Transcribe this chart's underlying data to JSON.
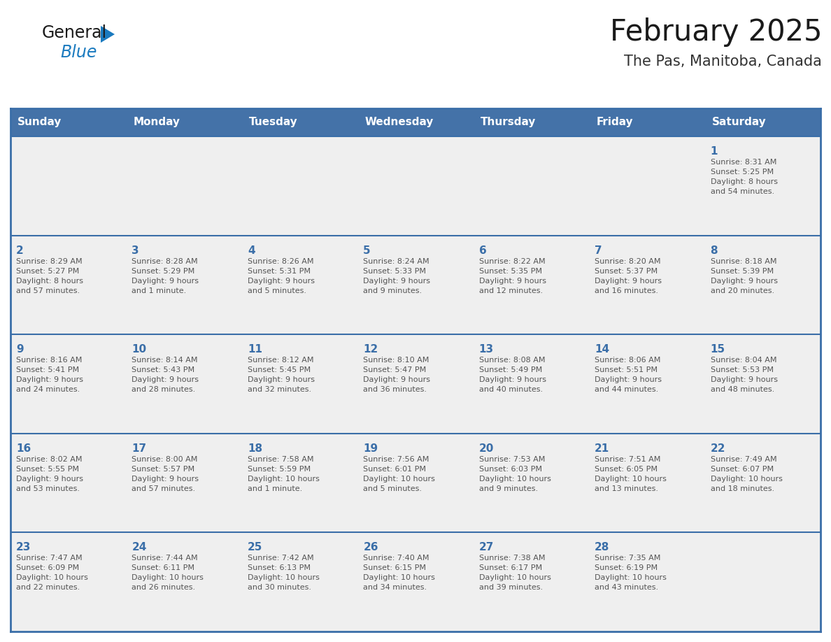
{
  "title": "February 2025",
  "subtitle": "The Pas, Manitoba, Canada",
  "header_bg": "#4472a8",
  "header_text_color": "#FFFFFF",
  "cell_bg": "#EFEFEF",
  "day_number_color": "#3a6ea8",
  "text_color": "#555555",
  "line_color": "#3a6ea8",
  "border_color": "#3a6ea8",
  "days_of_week": [
    "Sunday",
    "Monday",
    "Tuesday",
    "Wednesday",
    "Thursday",
    "Friday",
    "Saturday"
  ],
  "weeks": [
    [
      {
        "day": null,
        "info": null
      },
      {
        "day": null,
        "info": null
      },
      {
        "day": null,
        "info": null
      },
      {
        "day": null,
        "info": null
      },
      {
        "day": null,
        "info": null
      },
      {
        "day": null,
        "info": null
      },
      {
        "day": 1,
        "info": "Sunrise: 8:31 AM\nSunset: 5:25 PM\nDaylight: 8 hours\nand 54 minutes."
      }
    ],
    [
      {
        "day": 2,
        "info": "Sunrise: 8:29 AM\nSunset: 5:27 PM\nDaylight: 8 hours\nand 57 minutes."
      },
      {
        "day": 3,
        "info": "Sunrise: 8:28 AM\nSunset: 5:29 PM\nDaylight: 9 hours\nand 1 minute."
      },
      {
        "day": 4,
        "info": "Sunrise: 8:26 AM\nSunset: 5:31 PM\nDaylight: 9 hours\nand 5 minutes."
      },
      {
        "day": 5,
        "info": "Sunrise: 8:24 AM\nSunset: 5:33 PM\nDaylight: 9 hours\nand 9 minutes."
      },
      {
        "day": 6,
        "info": "Sunrise: 8:22 AM\nSunset: 5:35 PM\nDaylight: 9 hours\nand 12 minutes."
      },
      {
        "day": 7,
        "info": "Sunrise: 8:20 AM\nSunset: 5:37 PM\nDaylight: 9 hours\nand 16 minutes."
      },
      {
        "day": 8,
        "info": "Sunrise: 8:18 AM\nSunset: 5:39 PM\nDaylight: 9 hours\nand 20 minutes."
      }
    ],
    [
      {
        "day": 9,
        "info": "Sunrise: 8:16 AM\nSunset: 5:41 PM\nDaylight: 9 hours\nand 24 minutes."
      },
      {
        "day": 10,
        "info": "Sunrise: 8:14 AM\nSunset: 5:43 PM\nDaylight: 9 hours\nand 28 minutes."
      },
      {
        "day": 11,
        "info": "Sunrise: 8:12 AM\nSunset: 5:45 PM\nDaylight: 9 hours\nand 32 minutes."
      },
      {
        "day": 12,
        "info": "Sunrise: 8:10 AM\nSunset: 5:47 PM\nDaylight: 9 hours\nand 36 minutes."
      },
      {
        "day": 13,
        "info": "Sunrise: 8:08 AM\nSunset: 5:49 PM\nDaylight: 9 hours\nand 40 minutes."
      },
      {
        "day": 14,
        "info": "Sunrise: 8:06 AM\nSunset: 5:51 PM\nDaylight: 9 hours\nand 44 minutes."
      },
      {
        "day": 15,
        "info": "Sunrise: 8:04 AM\nSunset: 5:53 PM\nDaylight: 9 hours\nand 48 minutes."
      }
    ],
    [
      {
        "day": 16,
        "info": "Sunrise: 8:02 AM\nSunset: 5:55 PM\nDaylight: 9 hours\nand 53 minutes."
      },
      {
        "day": 17,
        "info": "Sunrise: 8:00 AM\nSunset: 5:57 PM\nDaylight: 9 hours\nand 57 minutes."
      },
      {
        "day": 18,
        "info": "Sunrise: 7:58 AM\nSunset: 5:59 PM\nDaylight: 10 hours\nand 1 minute."
      },
      {
        "day": 19,
        "info": "Sunrise: 7:56 AM\nSunset: 6:01 PM\nDaylight: 10 hours\nand 5 minutes."
      },
      {
        "day": 20,
        "info": "Sunrise: 7:53 AM\nSunset: 6:03 PM\nDaylight: 10 hours\nand 9 minutes."
      },
      {
        "day": 21,
        "info": "Sunrise: 7:51 AM\nSunset: 6:05 PM\nDaylight: 10 hours\nand 13 minutes."
      },
      {
        "day": 22,
        "info": "Sunrise: 7:49 AM\nSunset: 6:07 PM\nDaylight: 10 hours\nand 18 minutes."
      }
    ],
    [
      {
        "day": 23,
        "info": "Sunrise: 7:47 AM\nSunset: 6:09 PM\nDaylight: 10 hours\nand 22 minutes."
      },
      {
        "day": 24,
        "info": "Sunrise: 7:44 AM\nSunset: 6:11 PM\nDaylight: 10 hours\nand 26 minutes."
      },
      {
        "day": 25,
        "info": "Sunrise: 7:42 AM\nSunset: 6:13 PM\nDaylight: 10 hours\nand 30 minutes."
      },
      {
        "day": 26,
        "info": "Sunrise: 7:40 AM\nSunset: 6:15 PM\nDaylight: 10 hours\nand 34 minutes."
      },
      {
        "day": 27,
        "info": "Sunrise: 7:38 AM\nSunset: 6:17 PM\nDaylight: 10 hours\nand 39 minutes."
      },
      {
        "day": 28,
        "info": "Sunrise: 7:35 AM\nSunset: 6:19 PM\nDaylight: 10 hours\nand 43 minutes."
      },
      {
        "day": null,
        "info": null
      }
    ]
  ],
  "logo_text1": "General",
  "logo_text2": "Blue",
  "logo_color1": "#1a1a1a",
  "logo_color2": "#1a7abf",
  "logo_triangle_color": "#1a7abf"
}
